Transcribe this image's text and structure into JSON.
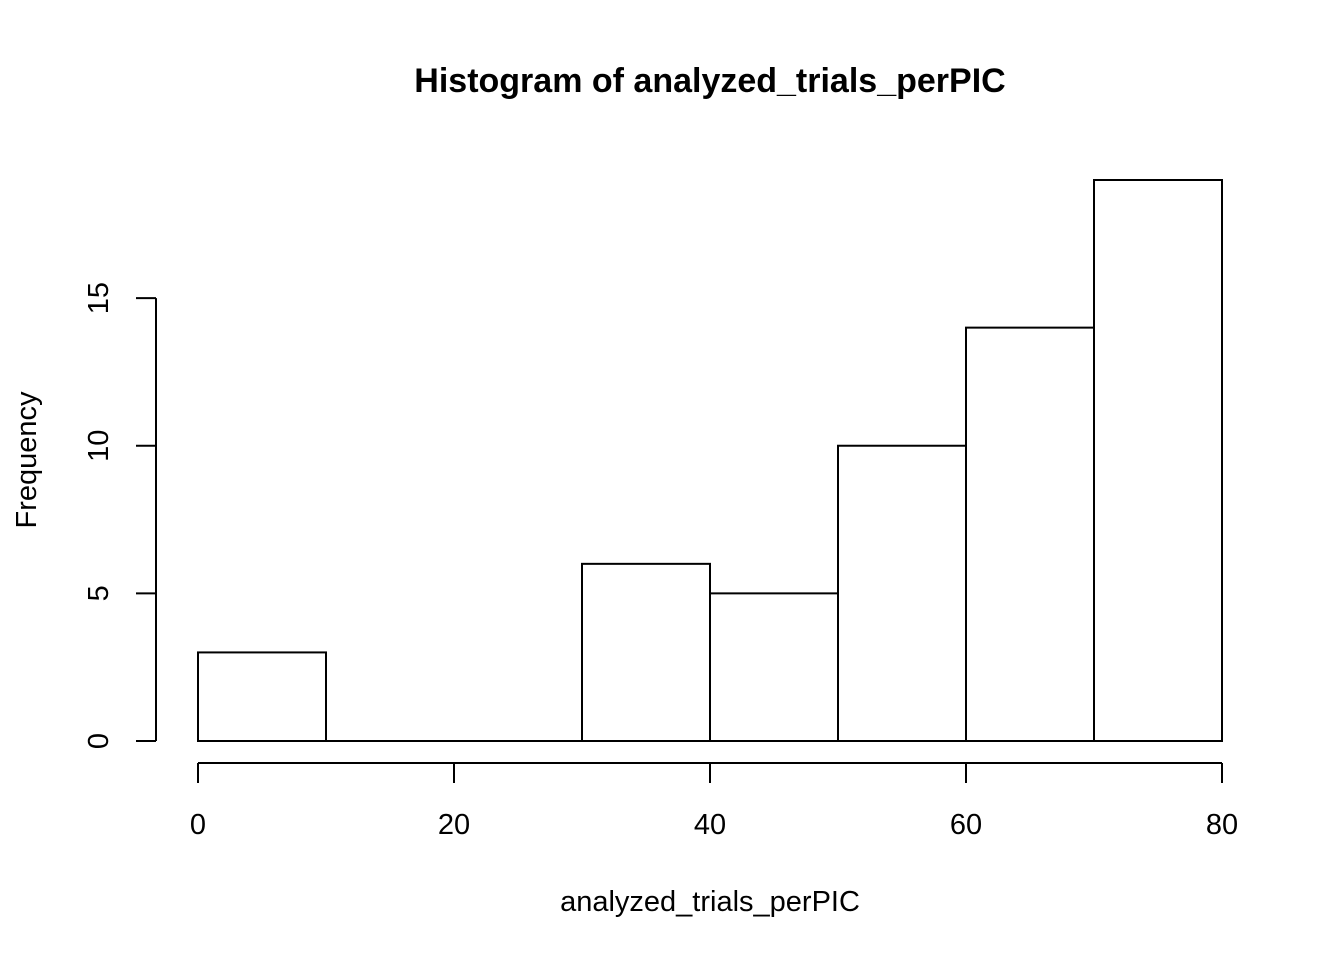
{
  "chart_data": {
    "type": "bar",
    "title": "Histogram of analyzed_trials_perPIC",
    "xlabel": "analyzed_trials_perPIC",
    "ylabel": "Frequency",
    "bins": [
      {
        "from": 0,
        "to": 10,
        "count": 3
      },
      {
        "from": 10,
        "to": 20,
        "count": 0
      },
      {
        "from": 20,
        "to": 30,
        "count": 0
      },
      {
        "from": 30,
        "to": 40,
        "count": 6
      },
      {
        "from": 40,
        "to": 50,
        "count": 5
      },
      {
        "from": 50,
        "to": 60,
        "count": 10
      },
      {
        "from": 60,
        "to": 70,
        "count": 14
      },
      {
        "from": 70,
        "to": 80,
        "count": 19
      }
    ],
    "xlim": [
      0,
      80
    ],
    "ylim": [
      0,
      19
    ],
    "x_ticks": [
      "0",
      "20",
      "40",
      "60",
      "80"
    ],
    "y_ticks": [
      "0",
      "5",
      "10",
      "15"
    ],
    "grid": false,
    "bar_fill": "#ffffff",
    "bar_stroke": "#000000"
  }
}
